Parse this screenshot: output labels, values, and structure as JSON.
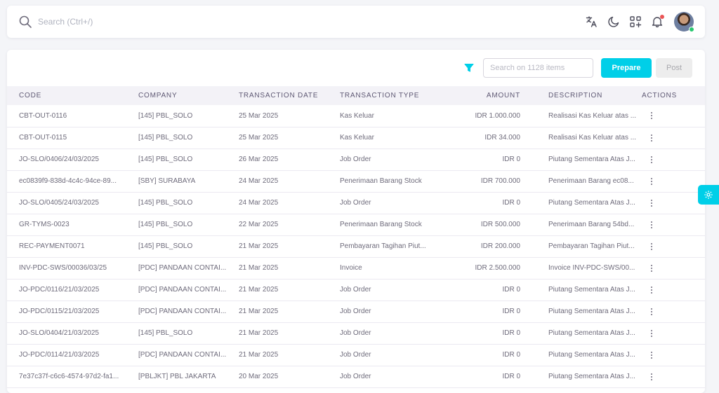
{
  "topbar": {
    "search_placeholder": "Search (Ctrl+/)",
    "icons": [
      "search-icon",
      "translate-icon",
      "moon-icon",
      "apps-add-icon",
      "bell-icon",
      "avatar"
    ]
  },
  "toolbar": {
    "search_placeholder": "Search on 1128 items",
    "prepare_label": "Prepare",
    "post_label": "Post",
    "accent_color": "#00cfe8"
  },
  "table": {
    "headers": {
      "code": "CODE",
      "company": "COMPANY",
      "date": "TRANSACTION DATE",
      "type": "TRANSACTION TYPE",
      "amount": "AMOUNT",
      "description": "DESCRIPTION",
      "actions": "ACTIONS"
    },
    "rows": [
      {
        "code": "CBT-OUT-0116",
        "company": "[145] PBL_SOLO",
        "date": "25 Mar 2025",
        "type": "Kas Keluar",
        "amount": "IDR 1.000.000",
        "description": "Realisasi Kas Keluar atas ..."
      },
      {
        "code": "CBT-OUT-0115",
        "company": "[145] PBL_SOLO",
        "date": "25 Mar 2025",
        "type": "Kas Keluar",
        "amount": "IDR 34.000",
        "description": "Realisasi Kas Keluar atas ..."
      },
      {
        "code": "JO-SLO/0406/24/03/2025",
        "company": "[145] PBL_SOLO",
        "date": "26 Mar 2025",
        "type": "Job Order",
        "amount": "IDR 0",
        "description": "Piutang Sementara Atas J..."
      },
      {
        "code": "ec0839f9-838d-4c4c-94ce-89...",
        "company": "[SBY] SURABAYA",
        "date": "24 Mar 2025",
        "type": "Penerimaan Barang Stock",
        "amount": "IDR 700.000",
        "description": "Penerimaan Barang ec08..."
      },
      {
        "code": "JO-SLO/0405/24/03/2025",
        "company": "[145] PBL_SOLO",
        "date": "24 Mar 2025",
        "type": "Job Order",
        "amount": "IDR 0",
        "description": "Piutang Sementara Atas J..."
      },
      {
        "code": "GR-TYMS-0023",
        "company": "[145] PBL_SOLO",
        "date": "22 Mar 2025",
        "type": "Penerimaan Barang Stock",
        "amount": "IDR 500.000",
        "description": "Penerimaan Barang 54bd..."
      },
      {
        "code": "REC-PAYMENT0071",
        "company": "[145] PBL_SOLO",
        "date": "21 Mar 2025",
        "type": "Pembayaran Tagihan Piut...",
        "amount": "IDR 200.000",
        "description": "Pembayaran Tagihan Piut..."
      },
      {
        "code": "INV-PDC-SWS/00036/03/25",
        "company": "[PDC] PANDAAN CONTAI...",
        "date": "21 Mar 2025",
        "type": "Invoice",
        "amount": "IDR 2.500.000",
        "description": "Invoice INV-PDC-SWS/00..."
      },
      {
        "code": "JO-PDC/0116/21/03/2025",
        "company": "[PDC] PANDAAN CONTAI...",
        "date": "21 Mar 2025",
        "type": "Job Order",
        "amount": "IDR 0",
        "description": "Piutang Sementara Atas J..."
      },
      {
        "code": "JO-PDC/0115/21/03/2025",
        "company": "[PDC] PANDAAN CONTAI...",
        "date": "21 Mar 2025",
        "type": "Job Order",
        "amount": "IDR 0",
        "description": "Piutang Sementara Atas J..."
      },
      {
        "code": "JO-SLO/0404/21/03/2025",
        "company": "[145] PBL_SOLO",
        "date": "21 Mar 2025",
        "type": "Job Order",
        "amount": "IDR 0",
        "description": "Piutang Sementara Atas J..."
      },
      {
        "code": "JO-PDC/0114/21/03/2025",
        "company": "[PDC] PANDAAN CONTAI...",
        "date": "21 Mar 2025",
        "type": "Job Order",
        "amount": "IDR 0",
        "description": "Piutang Sementara Atas J..."
      },
      {
        "code": "7e37c37f-c6c6-4574-97d2-fa1...",
        "company": "[PBLJKT] PBL JAKARTA",
        "date": "20 Mar 2025",
        "type": "Job Order",
        "amount": "IDR 0",
        "description": "Piutang Sementara Atas J..."
      }
    ]
  }
}
